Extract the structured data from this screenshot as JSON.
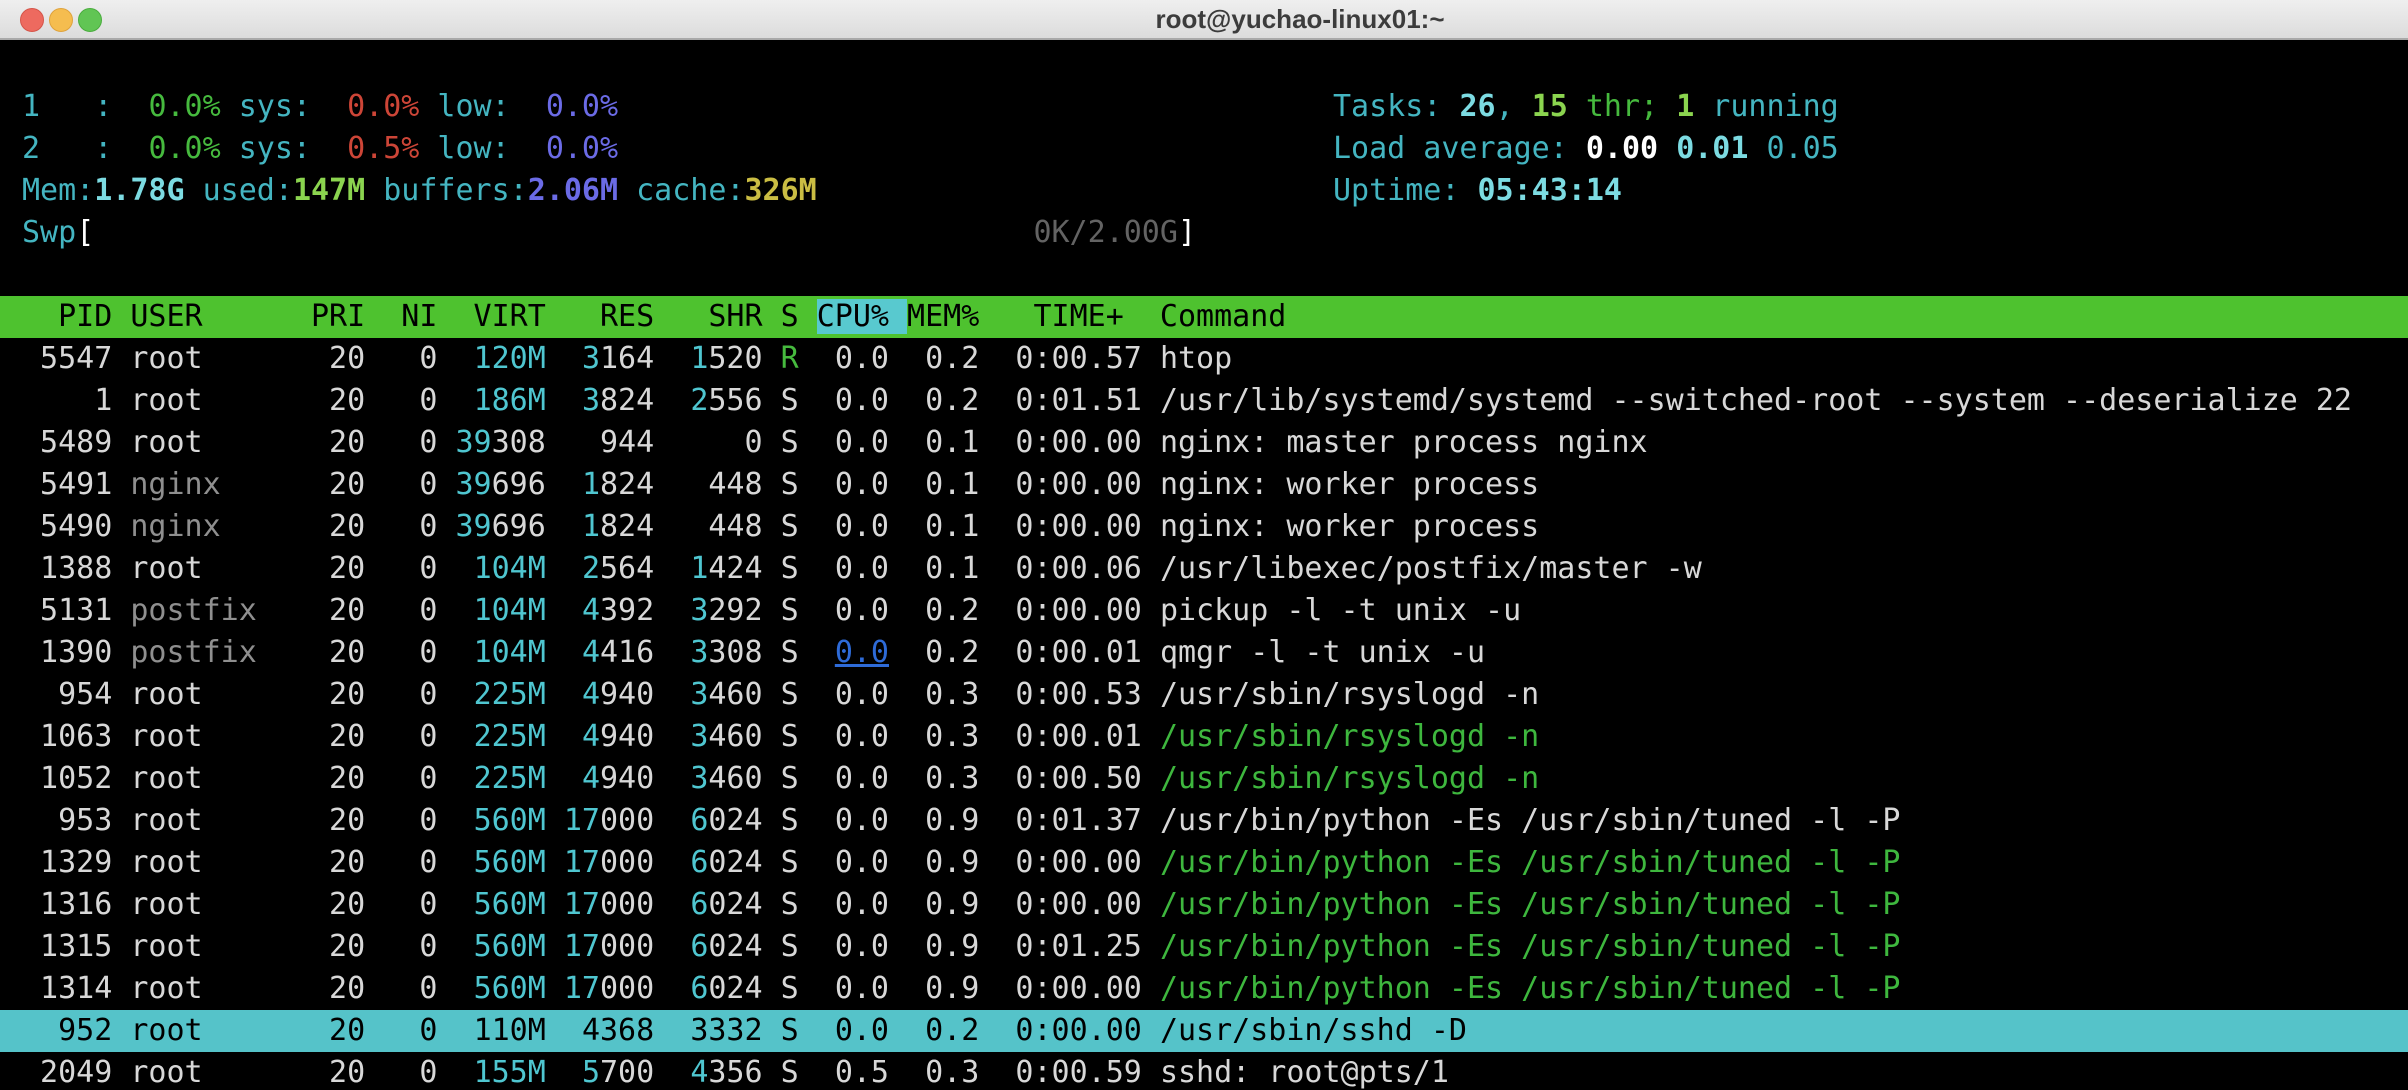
{
  "window": {
    "title": "root@yuchao-linux01:~"
  },
  "colors": {
    "fg": "#d8d8d8",
    "dim": "#8f8f8f",
    "cyan": "#44b5c1",
    "bcyan": "#7cdbe2",
    "memc": "#4fc6d0",
    "green": "#46ba3e",
    "bgreen": "#8bd44f",
    "tgreen": "#3eb73e",
    "red": "#cd4537",
    "blue": "#6b6be6",
    "yellow": "#cabd43",
    "dark": "#636363",
    "link": "#2e6bd8",
    "hdrbg": "#4ec22f",
    "sortbg": "#58c9cf",
    "selbg": "#55c3c9",
    "selfg": "#000000"
  },
  "htop": {
    "cpu_meters": [
      {
        "name": "cpu-meter-1",
        "tokens": [
          [
            "1   :  ",
            "cyan"
          ],
          [
            "0.0%",
            "green"
          ],
          [
            " sys:  ",
            "cyan"
          ],
          [
            "0.0%",
            "red"
          ],
          [
            " low:  ",
            "cyan"
          ],
          [
            "0.0%",
            "blue"
          ]
        ]
      },
      {
        "name": "cpu-meter-2",
        "tokens": [
          [
            "2   :  ",
            "cyan"
          ],
          [
            "0.0%",
            "green"
          ],
          [
            " sys:  ",
            "cyan"
          ],
          [
            "0.5%",
            "red"
          ],
          [
            " low:  ",
            "cyan"
          ],
          [
            "0.0%",
            "blue"
          ]
        ]
      }
    ],
    "mem_meter": {
      "tokens": [
        [
          "Mem:",
          "cyan"
        ],
        [
          "1.78G",
          "bcyan"
        ],
        [
          " used:",
          "cyan"
        ],
        [
          "147M",
          "bgreen"
        ],
        [
          " buffers:",
          "cyan"
        ],
        [
          "2.06M",
          "bblue"
        ],
        [
          " cache:",
          "cyan"
        ],
        [
          "326M",
          "byellow"
        ]
      ]
    },
    "swap_meter": {
      "label": "Swp",
      "open": "[",
      "value": "0K/2.00G",
      "close": "]"
    },
    "tasks_meter": {
      "tokens": [
        [
          "Tasks: ",
          "cyan"
        ],
        [
          "26",
          "bcyan"
        ],
        [
          ", ",
          "cyan"
        ],
        [
          "15",
          "bgreen"
        ],
        [
          " thr",
          "green"
        ],
        [
          "; ",
          "green"
        ],
        [
          "1",
          "bgreen"
        ],
        [
          " running",
          "cyan"
        ]
      ]
    },
    "load_meter": {
      "tokens": [
        [
          "Load average: ",
          "cyan"
        ],
        [
          "0.00 ",
          "bwhite"
        ],
        [
          "0.01 ",
          "bcyan"
        ],
        [
          "0.05",
          "cyan"
        ]
      ]
    },
    "uptime_meter": {
      "tokens": [
        [
          "Uptime: ",
          "cyan"
        ],
        [
          "05:43:14",
          "bcyan"
        ]
      ]
    },
    "table_header": {
      "before": "  PID USER      PRI  NI  VIRT   RES   SHR S ",
      "sort_column": "CPU% ",
      "after": "MEM%   TIME+  Command"
    },
    "rows": [
      {
        "pid": "5547",
        "user": "root",
        "pri": "20",
        "ni": "0",
        "virt": "120M",
        "res": "3164",
        "shr": "1520",
        "s": "R",
        "cpu": "0.0",
        "mem": "0.2",
        "time": "0:00.57",
        "cmd": "htop"
      },
      {
        "pid": "1",
        "user": "root",
        "pri": "20",
        "ni": "0",
        "virt": "186M",
        "res": "3824",
        "shr": "2556",
        "s": "S",
        "cpu": "0.0",
        "mem": "0.2",
        "time": "0:01.51",
        "cmd": "/usr/lib/systemd/systemd --switched-root --system --deserialize 22"
      },
      {
        "pid": "5489",
        "user": "root",
        "pri": "20",
        "ni": "0",
        "virt": "39308",
        "res": "944",
        "shr": "0",
        "s": "S",
        "cpu": "0.0",
        "mem": "0.1",
        "time": "0:00.00",
        "cmd": "nginx: master process nginx"
      },
      {
        "pid": "5491",
        "user": "nginx",
        "pri": "20",
        "ni": "0",
        "virt": "39696",
        "res": "1824",
        "shr": "448",
        "s": "S",
        "cpu": "0.0",
        "mem": "0.1",
        "time": "0:00.00",
        "cmd": "nginx: worker process"
      },
      {
        "pid": "5490",
        "user": "nginx",
        "pri": "20",
        "ni": "0",
        "virt": "39696",
        "res": "1824",
        "shr": "448",
        "s": "S",
        "cpu": "0.0",
        "mem": "0.1",
        "time": "0:00.00",
        "cmd": "nginx: worker process"
      },
      {
        "pid": "1388",
        "user": "root",
        "pri": "20",
        "ni": "0",
        "virt": "104M",
        "res": "2564",
        "shr": "1424",
        "s": "S",
        "cpu": "0.0",
        "mem": "0.1",
        "time": "0:00.06",
        "cmd": "/usr/libexec/postfix/master -w"
      },
      {
        "pid": "5131",
        "user": "postfix",
        "pri": "20",
        "ni": "0",
        "virt": "104M",
        "res": "4392",
        "shr": "3292",
        "s": "S",
        "cpu": "0.0",
        "mem": "0.2",
        "time": "0:00.00",
        "cmd": "pickup -l -t unix -u"
      },
      {
        "pid": "1390",
        "user": "postfix",
        "pri": "20",
        "ni": "0",
        "virt": "104M",
        "res": "4416",
        "shr": "3308",
        "s": "S",
        "cpu": "0.0",
        "mem": "0.2",
        "time": "0:00.01",
        "cmd": "qmgr -l -t unix -u",
        "cpu_link": true
      },
      {
        "pid": "954",
        "user": "root",
        "pri": "20",
        "ni": "0",
        "virt": "225M",
        "res": "4940",
        "shr": "3460",
        "s": "S",
        "cpu": "0.0",
        "mem": "0.3",
        "time": "0:00.53",
        "cmd": "/usr/sbin/rsyslogd -n"
      },
      {
        "pid": "1063",
        "user": "root",
        "pri": "20",
        "ni": "0",
        "virt": "225M",
        "res": "4940",
        "shr": "3460",
        "s": "S",
        "cpu": "0.0",
        "mem": "0.3",
        "time": "0:00.01",
        "cmd": "/usr/sbin/rsyslogd -n",
        "thread": true
      },
      {
        "pid": "1052",
        "user": "root",
        "pri": "20",
        "ni": "0",
        "virt": "225M",
        "res": "4940",
        "shr": "3460",
        "s": "S",
        "cpu": "0.0",
        "mem": "0.3",
        "time": "0:00.50",
        "cmd": "/usr/sbin/rsyslogd -n",
        "thread": true
      },
      {
        "pid": "953",
        "user": "root",
        "pri": "20",
        "ni": "0",
        "virt": "560M",
        "res": "17000",
        "shr": "6024",
        "s": "S",
        "cpu": "0.0",
        "mem": "0.9",
        "time": "0:01.37",
        "cmd": "/usr/bin/python -Es /usr/sbin/tuned -l -P"
      },
      {
        "pid": "1329",
        "user": "root",
        "pri": "20",
        "ni": "0",
        "virt": "560M",
        "res": "17000",
        "shr": "6024",
        "s": "S",
        "cpu": "0.0",
        "mem": "0.9",
        "time": "0:00.00",
        "cmd": "/usr/bin/python -Es /usr/sbin/tuned -l -P",
        "thread": true
      },
      {
        "pid": "1316",
        "user": "root",
        "pri": "20",
        "ni": "0",
        "virt": "560M",
        "res": "17000",
        "shr": "6024",
        "s": "S",
        "cpu": "0.0",
        "mem": "0.9",
        "time": "0:00.00",
        "cmd": "/usr/bin/python -Es /usr/sbin/tuned -l -P",
        "thread": true
      },
      {
        "pid": "1315",
        "user": "root",
        "pri": "20",
        "ni": "0",
        "virt": "560M",
        "res": "17000",
        "shr": "6024",
        "s": "S",
        "cpu": "0.0",
        "mem": "0.9",
        "time": "0:01.25",
        "cmd": "/usr/bin/python -Es /usr/sbin/tuned -l -P",
        "thread": true
      },
      {
        "pid": "1314",
        "user": "root",
        "pri": "20",
        "ni": "0",
        "virt": "560M",
        "res": "17000",
        "shr": "6024",
        "s": "S",
        "cpu": "0.0",
        "mem": "0.9",
        "time": "0:00.00",
        "cmd": "/usr/bin/python -Es /usr/sbin/tuned -l -P",
        "thread": true
      },
      {
        "pid": "952",
        "user": "root",
        "pri": "20",
        "ni": "0",
        "virt": "110M",
        "res": "4368",
        "shr": "3332",
        "s": "S",
        "cpu": "0.0",
        "mem": "0.2",
        "time": "0:00.00",
        "cmd": "/usr/sbin/sshd -D",
        "selected": true
      },
      {
        "pid": "2049",
        "user": "root",
        "pri": "20",
        "ni": "0",
        "virt": "155M",
        "res": "5700",
        "shr": "4356",
        "s": "S",
        "cpu": "0.5",
        "mem": "0.3",
        "time": "0:00.59",
        "cmd": "sshd: root@pts/1"
      }
    ]
  }
}
